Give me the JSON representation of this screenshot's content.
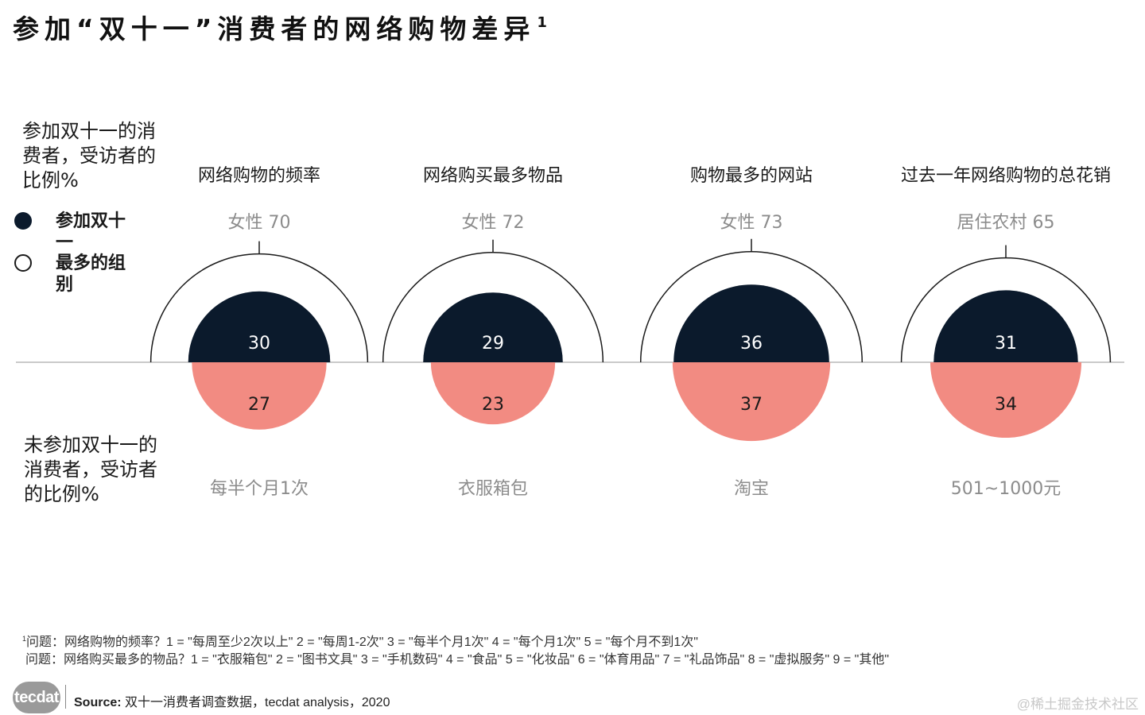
{
  "title": "参加“双十一”消费者的网络购物差异",
  "title_note": "1",
  "legend": {
    "top_label": "参加双十一的消费者，受访者的比例%",
    "bottom_label": "未参加双十一的消费者，受访者的比例%",
    "filled_label": "参加双十一",
    "outline_label": "最多的组别"
  },
  "colors": {
    "participant": "#0b1a2c",
    "non_participant": "#f28b82",
    "outline": "#1a1a1a",
    "baseline": "#b8b8b8",
    "muted_text": "#8c8c8c"
  },
  "chart_data": {
    "type": "semi-circle comparison",
    "title": "参加“双十一”消费者的网络购物差异",
    "categories": [
      "网络购物的频率",
      "网络购买最多物品",
      "购物最多的网站",
      "过去一年网络购物的总花销"
    ],
    "series": [
      {
        "name": "参加双十一",
        "values": [
          30,
          29,
          36,
          31
        ]
      },
      {
        "name": "未参加双十一",
        "values": [
          27,
          23,
          37,
          34
        ]
      },
      {
        "name": "最多的组别",
        "values": [
          70,
          72,
          73,
          65
        ]
      }
    ],
    "top_group_labels": [
      "女性 70",
      "女性 72",
      "女性 73",
      "居住农村 65"
    ],
    "bottom_group_labels": [
      "每半个月1次",
      "衣服箱包",
      "淘宝",
      "501~1000元"
    ]
  },
  "footnotes": [
    "问题：网络购物的频率？1 = \"每周至少2次以上\" 2 = \"每周1-2次\" 3 = \"每半个月1次\" 4 = \"每个月1次\"  5 = \"每个月不到1次\"",
    "问题：网络购买最多的物品？1 = \"衣服箱包\" 2 = \"图书文具\" 3 = \"手机数码\"  4 = \"食品\" 5 = \"化妆品\" 6 = \"体育用品\" 7 = \"礼品饰品\" 8 = \"虚拟服务\" 9 = \"其他\""
  ],
  "footnote_mark": "1",
  "source_label": "Source:",
  "source_text": "双十一消费者调查数据，tecdat analysis，2020",
  "logo_text": "tecdat",
  "watermark": "@稀土掘金技术社区"
}
